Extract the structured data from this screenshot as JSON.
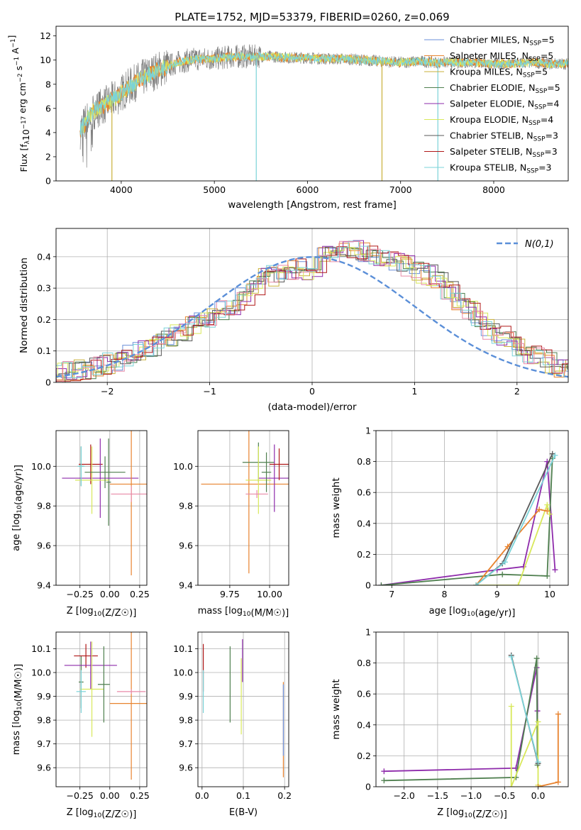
{
  "figure": {
    "title": "PLATE=1752, MJD=53379, FIBERID=0260, z=0.069"
  },
  "colors": {
    "chabrier_miles": "#6a8fd8",
    "salpeter_miles": "#e8832f",
    "kroupa_miles": "#c9b03a",
    "chabrier_elodie": "#4f7f4f",
    "salpeter_elodie": "#8e2bab",
    "kroupa_elodie": "#d8e85a",
    "chabrier_stelib": "#5a5a5a",
    "salpeter_stelib": "#b01818",
    "kroupa_stelib": "#7bd3d8",
    "data": "#808080",
    "pink": "#e88aa8",
    "normal": "#5b8fd8",
    "grid": "#b0b0b0"
  },
  "chart_data": [
    {
      "id": "spectrum",
      "type": "line",
      "xlabel": "wavelength [Angstrom, rest frame]",
      "ylabel": "Flux [f_λ10^-17 erg cm^-2 s^-1 A^-1]",
      "xlim": [
        3300,
        8800
      ],
      "ylim": [
        0,
        12.8
      ],
      "xticks": [
        4000,
        5000,
        6000,
        7000,
        8000
      ],
      "yticks": [
        0,
        2,
        4,
        6,
        8,
        10,
        12
      ],
      "grid": false,
      "legend_position": "right",
      "series": [
        {
          "name": "Chabrier MILES, N",
          "sub": "SSP",
          "suffix": "=5",
          "color_key": "chabrier_miles"
        },
        {
          "name": "Salpeter MILES, N",
          "sub": "SSP",
          "suffix": "=5",
          "color_key": "salpeter_miles"
        },
        {
          "name": "Kroupa MILES, N",
          "sub": "SSP",
          "suffix": "=5",
          "color_key": "kroupa_miles"
        },
        {
          "name": "Chabrier ELODIE, N",
          "sub": "SSP",
          "suffix": "=5",
          "color_key": "chabrier_elodie"
        },
        {
          "name": "Salpeter ELODIE, N",
          "sub": "SSP",
          "suffix": "=4",
          "color_key": "salpeter_elodie"
        },
        {
          "name": "Kroupa ELODIE, N",
          "sub": "SSP",
          "suffix": "=4",
          "color_key": "kroupa_elodie"
        },
        {
          "name": "Chabrier STELIB, N",
          "sub": "SSP",
          "suffix": "=3",
          "color_key": "chabrier_stelib"
        },
        {
          "name": "Salpeter STELIB, N",
          "sub": "SSP",
          "suffix": "=3",
          "color_key": "salpeter_stelib"
        },
        {
          "name": "Kroupa STELIB, N",
          "sub": "SSP",
          "suffix": "=3",
          "color_key": "kroupa_stelib"
        }
      ],
      "continuum": [
        [
          3560,
          4.2
        ],
        [
          3700,
          5.8
        ],
        [
          3850,
          6.4
        ],
        [
          3950,
          6.9
        ],
        [
          4050,
          7.6
        ],
        [
          4200,
          8.4
        ],
        [
          4400,
          9.2
        ],
        [
          4600,
          9.8
        ],
        [
          4800,
          10.1
        ],
        [
          5000,
          10.1
        ],
        [
          5200,
          10.3
        ],
        [
          5400,
          10.3
        ],
        [
          5600,
          10.3
        ],
        [
          5800,
          10.2
        ],
        [
          6000,
          10.2
        ],
        [
          6200,
          10.1
        ],
        [
          6400,
          10.1
        ],
        [
          6600,
          10.0
        ],
        [
          6800,
          9.9
        ],
        [
          7000,
          9.8
        ],
        [
          7200,
          9.9
        ],
        [
          7400,
          9.8
        ],
        [
          7600,
          9.8
        ],
        [
          7800,
          9.8
        ],
        [
          8000,
          9.7
        ],
        [
          8200,
          9.7
        ],
        [
          8400,
          9.8
        ],
        [
          8600,
          9.7
        ],
        [
          8800,
          9.7
        ]
      ],
      "spikes": [
        [
          3900,
          0
        ],
        [
          5450,
          0
        ],
        [
          6800,
          0
        ],
        [
          7400,
          0
        ]
      ]
    },
    {
      "id": "residuals",
      "type": "line",
      "xlabel": "(data-model)/error",
      "ylabel": "Normed distribution",
      "xlim": [
        -2.5,
        2.5
      ],
      "ylim": [
        0,
        0.49
      ],
      "xticks": [
        -2,
        -1,
        0,
        1,
        2
      ],
      "yticks": [
        0.0,
        0.1,
        0.2,
        0.3,
        0.4
      ],
      "grid": true,
      "legend": "N(0,1)",
      "legend_position": "top-right",
      "bin_width": 0.1,
      "hist_base": [
        0.025,
        0.025,
        0.03,
        0.035,
        0.04,
        0.045,
        0.055,
        0.06,
        0.07,
        0.085,
        0.1,
        0.11,
        0.13,
        0.15,
        0.165,
        0.18,
        0.2,
        0.21,
        0.23,
        0.25,
        0.27,
        0.31,
        0.33,
        0.34,
        0.35,
        0.36,
        0.36,
        0.37,
        0.4,
        0.41,
        0.42,
        0.42,
        0.41,
        0.4,
        0.39,
        0.38,
        0.37,
        0.35,
        0.34,
        0.32,
        0.29,
        0.26,
        0.23,
        0.2,
        0.17,
        0.15,
        0.13,
        0.11,
        0.09,
        0.075,
        0.06,
        0.05,
        0.045,
        0.04,
        0.035,
        0.03
      ]
    },
    {
      "id": "age-vs-Z",
      "type": "scatter",
      "xlabel": "Z [log10(Z/Z☉)]",
      "ylabel": "age  [log10(age/yr)]",
      "xlim": [
        -0.45,
        0.31
      ],
      "ylim": [
        9.4,
        10.18
      ],
      "xticks": [
        -0.25,
        0.0,
        0.25
      ],
      "xticklabels": [
        "−0.25",
        "0.00",
        "0.25"
      ],
      "yticks": [
        9.4,
        9.6,
        9.8,
        10.0
      ],
      "yticklabels": [
        "9.4",
        "9.6",
        "9.8",
        "10.0"
      ],
      "grid": true,
      "points": [
        {
          "color_key": "chabrier_elodie",
          "x": -0.24,
          "xe": 0.02,
          "y": 10.0,
          "ye": 0.1
        },
        {
          "color_key": "chabrier_elodie",
          "x": -0.01,
          "xe": 0.02,
          "y": 9.92,
          "ye": 0.22
        },
        {
          "color_key": "salpeter_stelib",
          "x": -0.16,
          "xe": 0.1,
          "y": 10.01,
          "ye": 0.1
        },
        {
          "color_key": "salpeter_elodie",
          "x": -0.08,
          "xe": 0.32,
          "y": 9.94,
          "ye": 0.2
        },
        {
          "color_key": "kroupa_elodie",
          "x": -0.15,
          "xe": 0.14,
          "y": 9.93,
          "ye": 0.17
        },
        {
          "color_key": "chabrier_elodie",
          "x": -0.04,
          "xe": 0.17,
          "y": 9.97,
          "ye": 0.08
        },
        {
          "color_key": "salpeter_miles",
          "x": 0.18,
          "xe": 0.18,
          "y": 9.91,
          "ye": 0.46
        },
        {
          "color_key": "pink",
          "x": 0.18,
          "xe": 0.17,
          "y": 9.86,
          "ye": 0.04
        },
        {
          "color_key": "kroupa_stelib",
          "x": -0.24,
          "xe": 0.03,
          "y": 10.0,
          "ye": 0.1
        }
      ]
    },
    {
      "id": "age-vs-mass",
      "type": "scatter",
      "xlabel": "mass [log10(M/M☉)]",
      "ylabel": "",
      "xlim": [
        9.55,
        10.12
      ],
      "ylim": [
        9.4,
        10.18
      ],
      "xticks": [
        9.75,
        10.0
      ],
      "xticklabels": [
        "9.75",
        "10.00"
      ],
      "yticks": [
        9.4,
        9.6,
        9.8,
        10.0
      ],
      "yticklabels": [
        "9.4",
        "9.6",
        "9.8",
        "10.0"
      ],
      "grid": true,
      "points": [
        {
          "color_key": "salpeter_miles",
          "x": 9.87,
          "xe": 0.3,
          "y": 9.91,
          "ye": 0.45
        },
        {
          "color_key": "chabrier_elodie",
          "x": 9.93,
          "xe": 0.1,
          "y": 10.02,
          "ye": 0.1
        },
        {
          "color_key": "salpeter_elodie",
          "x": 10.03,
          "xe": 0.1,
          "y": 9.94,
          "ye": 0.17
        },
        {
          "color_key": "kroupa_elodie",
          "x": 9.93,
          "xe": 0.08,
          "y": 9.93,
          "ye": 0.17
        },
        {
          "color_key": "salpeter_stelib",
          "x": 10.06,
          "xe": 0.06,
          "y": 10.01,
          "ye": 0.08
        },
        {
          "color_key": "pink",
          "x": 9.92,
          "xe": 0.07,
          "y": 9.86,
          "ye": 0.02
        },
        {
          "color_key": "chabrier_elodie",
          "x": 9.98,
          "xe": 0.03,
          "y": 9.97,
          "ye": 0.1
        }
      ]
    },
    {
      "id": "weight-vs-age",
      "type": "line",
      "xlabel": "age  [log10(age/yr)]",
      "ylabel": "mass weight",
      "xlim": [
        6.7,
        10.35
      ],
      "ylim": [
        0,
        1.0
      ],
      "xticks": [
        7,
        8,
        9,
        10
      ],
      "yticks": [
        0.0,
        0.2,
        0.4,
        0.6,
        0.8,
        1.0
      ],
      "grid": true,
      "series": [
        {
          "color_key": "salpeter_elodie",
          "points": [
            [
              6.8,
              0.0
            ],
            [
              9.0,
              0.1
            ],
            [
              9.5,
              0.12
            ],
            [
              9.95,
              0.8
            ],
            [
              10.1,
              0.1
            ]
          ]
        },
        {
          "color_key": "chabrier_elodie",
          "points": [
            [
              6.8,
              0.0
            ],
            [
              9.1,
              0.07
            ],
            [
              9.95,
              0.06
            ],
            [
              10.05,
              0.82
            ]
          ]
        },
        {
          "color_key": "kroupa_elodie",
          "points": [
            [
              8.6,
              0.0
            ],
            [
              9.4,
              0.0
            ],
            [
              9.95,
              0.52
            ],
            [
              10.0,
              0.46
            ]
          ]
        },
        {
          "color_key": "salpeter_miles",
          "points": [
            [
              8.6,
              0.0
            ],
            [
              9.2,
              0.25
            ],
            [
              9.8,
              0.49
            ],
            [
              9.95,
              0.48
            ]
          ]
        },
        {
          "color_key": "chabrier_stelib",
          "points": [
            [
              8.6,
              0.0
            ],
            [
              9.1,
              0.14
            ],
            [
              10.05,
              0.85
            ]
          ]
        },
        {
          "color_key": "kroupa_stelib",
          "points": [
            [
              8.6,
              0.0
            ],
            [
              9.15,
              0.15
            ],
            [
              10.1,
              0.84
            ]
          ]
        }
      ]
    },
    {
      "id": "mass-vs-Z",
      "type": "scatter",
      "xlabel": "Z [log10(Z/Z☉)]",
      "ylabel": "mass [log10(M/M☉)]",
      "xlim": [
        -0.45,
        0.31
      ],
      "ylim": [
        9.52,
        10.17
      ],
      "xticks": [
        -0.25,
        0.0,
        0.25
      ],
      "xticklabels": [
        "−0.25",
        "0.00",
        "0.25"
      ],
      "yticks": [
        9.6,
        9.7,
        9.8,
        9.9,
        10.0,
        10.1
      ],
      "yticklabels": [
        "9.6",
        "9.7",
        "9.8",
        "9.9",
        "10.0",
        "10.1"
      ],
      "grid": true,
      "points": [
        {
          "color_key": "chabrier_elodie",
          "x": -0.24,
          "xe": 0.02,
          "y": 9.96,
          "ye": 0.11
        },
        {
          "color_key": "salpeter_stelib",
          "x": -0.2,
          "xe": 0.1,
          "y": 10.07,
          "ye": 0.05
        },
        {
          "color_key": "salpeter_elodie",
          "x": -0.16,
          "xe": 0.22,
          "y": 10.03,
          "ye": 0.1
        },
        {
          "color_key": "kroupa_elodie",
          "x": -0.15,
          "xe": 0.1,
          "y": 9.93,
          "ye": 0.2
        },
        {
          "color_key": "chabrier_elodie",
          "x": -0.05,
          "xe": 0.05,
          "y": 9.95,
          "ye": 0.16
        },
        {
          "color_key": "salpeter_miles",
          "x": 0.18,
          "xe": 0.18,
          "y": 9.87,
          "ye": 0.32
        },
        {
          "color_key": "pink",
          "x": 0.18,
          "xe": 0.12,
          "y": 9.92,
          "ye": 0.01
        },
        {
          "color_key": "kroupa_stelib",
          "x": -0.24,
          "xe": 0.04,
          "y": 9.92,
          "ye": 0.09
        }
      ]
    },
    {
      "id": "mass-vs-EBV",
      "type": "scatter",
      "xlabel": "E(B-V)",
      "ylabel": "",
      "xlim": [
        -0.01,
        0.21
      ],
      "ylim": [
        9.52,
        10.17
      ],
      "xticks": [
        0.0,
        0.1,
        0.2
      ],
      "xticklabels": [
        "0.0",
        "0.1",
        "0.2"
      ],
      "yticks": [
        9.6,
        9.7,
        9.8,
        9.9,
        10.0,
        10.1
      ],
      "yticklabels": [
        "9.6",
        "9.7",
        "9.8",
        "9.9",
        "10.0",
        "10.1"
      ],
      "grid": true,
      "points": [
        {
          "color_key": "salpeter_stelib",
          "x": 0.003,
          "xe": 0.0,
          "y": 10.02,
          "ye": 0.1
        },
        {
          "color_key": "kroupa_stelib",
          "x": 0.003,
          "xe": 0.0,
          "y": 9.92,
          "ye": 0.09
        },
        {
          "color_key": "chabrier_elodie",
          "x": 0.068,
          "xe": 0.0,
          "y": 9.95,
          "ye": 0.16
        },
        {
          "color_key": "salpeter_elodie",
          "x": 0.098,
          "xe": 0.0,
          "y": 10.05,
          "ye": 0.09
        },
        {
          "color_key": "kroupa_elodie",
          "x": 0.095,
          "xe": 0.0,
          "y": 9.9,
          "ye": 0.16
        },
        {
          "color_key": "salpeter_miles",
          "x": 0.197,
          "xe": 0.0,
          "y": 9.76,
          "ye": 0.2
        },
        {
          "color_key": "chabrier_miles",
          "x": 0.197,
          "xe": 0.0,
          "y": 9.8,
          "ye": 0.15
        }
      ]
    },
    {
      "id": "weight-vs-Z",
      "type": "line",
      "xlabel": "Z [log10(Z/Z☉)]",
      "ylabel": "mass weight",
      "xlim": [
        -2.42,
        0.45
      ],
      "ylim": [
        0,
        1.0
      ],
      "xticks": [
        -2.0,
        -1.5,
        -1.0,
        -0.5,
        0.0
      ],
      "xticklabels": [
        "−2.0",
        "−1.5",
        "−1.0",
        "−0.5",
        "0.0"
      ],
      "yticks": [
        0.0,
        0.2,
        0.4,
        0.6,
        0.8,
        1.0
      ],
      "grid": true,
      "series": [
        {
          "color_key": "salpeter_elodie",
          "points": [
            [
              -2.3,
              0.1
            ],
            [
              -0.33,
              0.12
            ],
            [
              -0.02,
              0.77
            ],
            [
              -0.01,
              0.49
            ]
          ]
        },
        {
          "color_key": "chabrier_elodie",
          "points": [
            [
              -2.3,
              0.04
            ],
            [
              -0.33,
              0.06
            ],
            [
              -0.02,
              0.83
            ],
            [
              -0.01,
              0.14
            ]
          ]
        },
        {
          "color_key": "kroupa_elodie",
          "points": [
            [
              -0.4,
              0.52
            ],
            [
              -0.4,
              0.0
            ],
            [
              0.0,
              0.42
            ],
            [
              0.0,
              0.01
            ]
          ]
        },
        {
          "color_key": "salpeter_miles",
          "points": [
            [
              0.0,
              0.0
            ],
            [
              0.3,
              0.03
            ],
            [
              0.3,
              0.47
            ]
          ]
        },
        {
          "color_key": "chabrier_stelib",
          "points": [
            [
              -0.4,
              0.85
            ],
            [
              0.0,
              0.15
            ]
          ]
        },
        {
          "color_key": "kroupa_stelib",
          "points": [
            [
              -0.4,
              0.84
            ],
            [
              0.0,
              0.16
            ]
          ]
        }
      ]
    }
  ]
}
